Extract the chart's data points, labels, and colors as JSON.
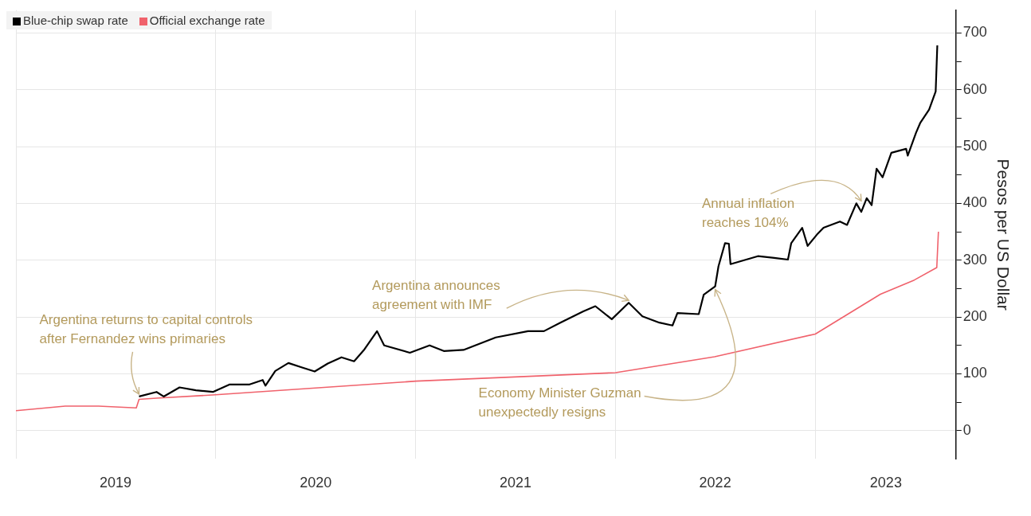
{
  "chart_data": {
    "type": "line",
    "ylabel": "Pesos per US Dollar",
    "legend": "top left",
    "grid": true,
    "marker": "none",
    "xlim": [
      "2019-01-01",
      "2023-09-15"
    ],
    "xticks": [
      {
        "value": "2019-01-01",
        "label": null
      },
      {
        "value": "2019-07-02",
        "label": "2019"
      },
      {
        "value": "2020-01-01",
        "label": null
      },
      {
        "value": "2020-07-02",
        "label": "2020"
      },
      {
        "value": "2021-01-01",
        "label": null
      },
      {
        "value": "2021-07-02",
        "label": "2021"
      },
      {
        "value": "2022-01-01",
        "label": null
      },
      {
        "value": "2022-07-02",
        "label": "2022"
      },
      {
        "value": "2023-01-01",
        "label": null
      },
      {
        "value": "2023-05-10",
        "label": "2023"
      }
    ],
    "ylim": [
      -50,
      740
    ],
    "yticks": [
      0,
      {
        "value": 50,
        "label": null
      },
      100,
      {
        "value": 150,
        "label": null
      },
      200,
      {
        "value": 250,
        "label": null
      },
      300,
      {
        "value": 350,
        "label": null
      },
      400,
      {
        "value": 450,
        "label": null
      },
      500,
      {
        "value": 550,
        "label": null
      },
      600,
      {
        "value": 650,
        "label": null
      },
      700
    ],
    "series": [
      {
        "name": "Blue-chip swap rate",
        "color": "#000000",
        "x": [
          "2019-08-14",
          "2019-09-15",
          "2019-09-28",
          "2019-10-27",
          "2019-11-26",
          "2019-12-27",
          "2020-01-26",
          "2020-03-02",
          "2020-03-27",
          "2020-04-01",
          "2020-04-19",
          "2020-05-13",
          "2020-06-07",
          "2020-06-30",
          "2020-07-24",
          "2020-08-18",
          "2020-09-10",
          "2020-09-29",
          "2020-10-22",
          "2020-11-04",
          "2020-12-21",
          "2021-01-26",
          "2021-02-21",
          "2021-03-29",
          "2021-05-27",
          "2021-07-25",
          "2021-08-23",
          "2021-09-22",
          "2021-11-03",
          "2021-11-25",
          "2021-12-25",
          "2022-01-25",
          "2022-02-19",
          "2022-03-22",
          "2022-04-15",
          "2022-04-24",
          "2022-06-02",
          "2022-06-11",
          "2022-07-02",
          "2022-07-08",
          "2022-07-20",
          "2022-07-27",
          "2022-07-30",
          "2022-09-18",
          "2022-10-18",
          "2022-11-12",
          "2022-11-18",
          "2022-12-08",
          "2022-12-18",
          "2023-01-04",
          "2023-01-16",
          "2023-02-15",
          "2023-02-28",
          "2023-03-17",
          "2023-03-26",
          "2023-04-05",
          "2023-04-14",
          "2023-04-23",
          "2023-05-04",
          "2023-05-20",
          "2023-06-16",
          "2023-06-19",
          "2023-07-04",
          "2023-07-12",
          "2023-07-28",
          "2023-08-09",
          "2023-08-12"
        ],
        "values": [
          60,
          68,
          60,
          76,
          71,
          68,
          81,
          81,
          89,
          79,
          105,
          119,
          111,
          104,
          118,
          129,
          122,
          143,
          175,
          150,
          137,
          150,
          140,
          142,
          164,
          175,
          175,
          190,
          210,
          219,
          196,
          225,
          201,
          190,
          185,
          207,
          205,
          239,
          254,
          289,
          330,
          329,
          293,
          307,
          304,
          301,
          330,
          357,
          325,
          345,
          357,
          368,
          362,
          400,
          385,
          409,
          397,
          461,
          446,
          489,
          496,
          484,
          524,
          542,
          565,
          597,
          678
        ]
      },
      {
        "name": "Official exchange rate",
        "color": "#f0626c",
        "x": [
          "2019-01-01",
          "2019-04-01",
          "2019-06-01",
          "2019-08-09",
          "2019-08-14",
          "2019-09-15",
          "2020-01-01",
          "2021-01-01",
          "2022-01-01",
          "2022-07-01",
          "2023-01-01",
          "2023-04-30",
          "2023-07-01",
          "2023-08-11",
          "2023-08-14"
        ],
        "values": [
          35,
          43,
          43,
          40,
          55,
          57,
          63,
          87,
          102,
          130,
          170,
          240,
          265,
          287,
          350
        ]
      }
    ],
    "annotations": [
      {
        "text": "Argentina returns to capital controls\nafter Fernandez wins primaries",
        "x": "2019-08-14",
        "y": 60
      },
      {
        "text": "Argentina announces\nagreement with IMF",
        "x": "2022-01-25",
        "y": 225
      },
      {
        "text": "Economy Minister Guzman\nunexpectedly resigns",
        "x": "2022-07-02",
        "y": 254
      },
      {
        "text": "Annual inflation\nreaches 104%",
        "x": "2023-03-26",
        "y": 400
      }
    ]
  }
}
